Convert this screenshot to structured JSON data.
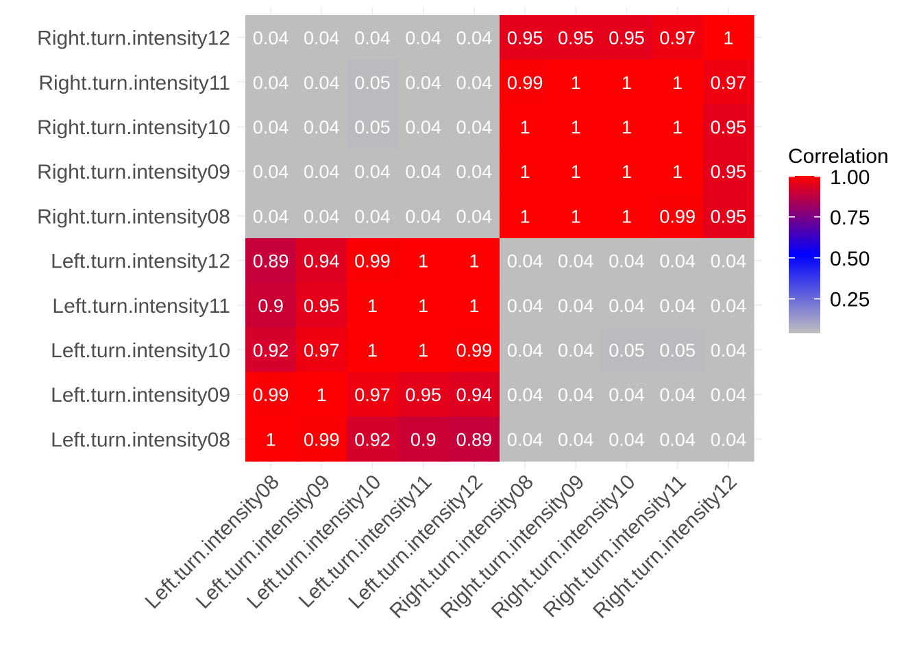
{
  "chart_data": {
    "type": "heatmap",
    "title": "",
    "xlabel": "",
    "ylabel": "",
    "x_categories": [
      "Left.turn.intensity08",
      "Left.turn.intensity09",
      "Left.turn.intensity10",
      "Left.turn.intensity11",
      "Left.turn.intensity12",
      "Right.turn.intensity08",
      "Right.turn.intensity09",
      "Right.turn.intensity10",
      "Right.turn.intensity11",
      "Right.turn.intensity12"
    ],
    "y_categories": [
      "Right.turn.intensity12",
      "Right.turn.intensity11",
      "Right.turn.intensity10",
      "Right.turn.intensity09",
      "Right.turn.intensity08",
      "Left.turn.intensity12",
      "Left.turn.intensity11",
      "Left.turn.intensity10",
      "Left.turn.intensity09",
      "Left.turn.intensity08"
    ],
    "values": [
      [
        0.04,
        0.04,
        0.04,
        0.04,
        0.04,
        0.95,
        0.95,
        0.95,
        0.97,
        1
      ],
      [
        0.04,
        0.04,
        0.05,
        0.04,
        0.04,
        0.99,
        1,
        1,
        1,
        0.97
      ],
      [
        0.04,
        0.04,
        0.05,
        0.04,
        0.04,
        1,
        1,
        1,
        1,
        0.95
      ],
      [
        0.04,
        0.04,
        0.04,
        0.04,
        0.04,
        1,
        1,
        1,
        1,
        0.95
      ],
      [
        0.04,
        0.04,
        0.04,
        0.04,
        0.04,
        1,
        1,
        1,
        0.99,
        0.95
      ],
      [
        0.89,
        0.94,
        0.99,
        1,
        1,
        0.04,
        0.04,
        0.04,
        0.04,
        0.04
      ],
      [
        0.9,
        0.95,
        1,
        1,
        1,
        0.04,
        0.04,
        0.04,
        0.04,
        0.04
      ],
      [
        0.92,
        0.97,
        1,
        1,
        0.99,
        0.04,
        0.04,
        0.05,
        0.05,
        0.04
      ],
      [
        0.99,
        1,
        0.97,
        0.95,
        0.94,
        0.04,
        0.04,
        0.04,
        0.04,
        0.04
      ],
      [
        1,
        0.99,
        0.92,
        0.9,
        0.89,
        0.04,
        0.04,
        0.04,
        0.04,
        0.04
      ]
    ],
    "legend": {
      "title": "Correlation",
      "placement": "right",
      "ticks": [
        "1.00",
        "0.75",
        "0.50",
        "0.25"
      ],
      "tick_values": [
        1.0,
        0.75,
        0.5,
        0.25
      ],
      "range": [
        0.04,
        1.0
      ],
      "colors": {
        "low": "#bebebe",
        "mid": "#0000ff",
        "high": "#ff0000"
      }
    },
    "grid": true
  }
}
